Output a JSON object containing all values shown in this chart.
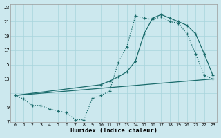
{
  "xlabel": "Humidex (Indice chaleur)",
  "bg_color": "#cce8ee",
  "grid_color": "#a8d4dc",
  "line_color": "#1a6b6b",
  "xlim_min": -0.5,
  "xlim_max": 23.5,
  "ylim_min": 7,
  "ylim_max": 23.5,
  "xticks": [
    0,
    1,
    2,
    3,
    4,
    5,
    6,
    7,
    8,
    9,
    10,
    11,
    12,
    13,
    14,
    15,
    16,
    17,
    18,
    19,
    20,
    21,
    22,
    23
  ],
  "yticks": [
    7,
    9,
    11,
    13,
    15,
    17,
    19,
    21,
    23
  ],
  "curve1_x": [
    0,
    1,
    2,
    3,
    4,
    5,
    6,
    7,
    8,
    9,
    10,
    11,
    12,
    13,
    14,
    15,
    16,
    17,
    18,
    19,
    20,
    21,
    22,
    23
  ],
  "curve1_y": [
    10.7,
    10.2,
    9.3,
    9.3,
    8.8,
    8.5,
    8.3,
    7.3,
    7.3,
    10.3,
    10.7,
    11.3,
    15.3,
    17.5,
    21.8,
    21.5,
    21.3,
    21.7,
    21.0,
    20.8,
    19.3,
    16.5,
    13.5,
    13.0
  ],
  "curve2_x": [
    0,
    10,
    11,
    12,
    13,
    14,
    15,
    16,
    17,
    18,
    19,
    20,
    21,
    22,
    23
  ],
  "curve2_y": [
    10.7,
    12.2,
    12.7,
    13.3,
    14.0,
    15.5,
    19.3,
    21.5,
    22.0,
    21.5,
    21.0,
    20.5,
    19.3,
    16.5,
    13.5
  ],
  "curve3_x": [
    0,
    23
  ],
  "curve3_y": [
    10.7,
    13.0
  ]
}
